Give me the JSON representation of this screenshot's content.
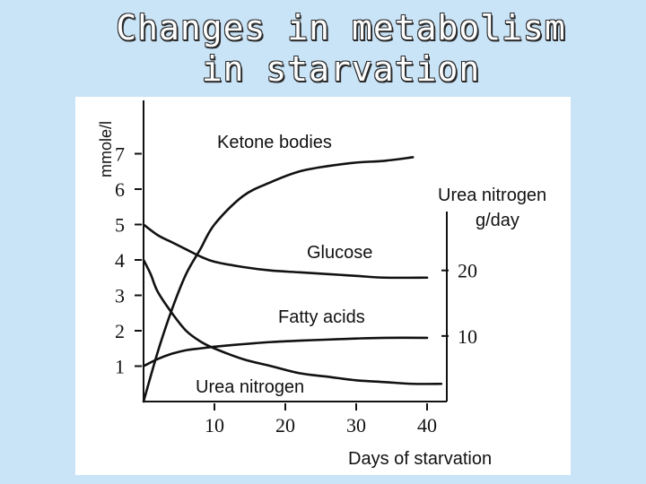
{
  "title": {
    "line1": "Changes in  metabolism",
    "line2": "in starvation"
  },
  "chart_data": {
    "type": "line",
    "ylabel": "mmole/l",
    "xlabel": "Days of starvation",
    "y2label_line1": "Urea nitrogen",
    "y2label_line2": "g/day",
    "xlim": [
      0,
      42
    ],
    "ylim": [
      0,
      8
    ],
    "x_ticks": [
      "10",
      "20",
      "30",
      "40"
    ],
    "y_ticks": [
      "1",
      "2",
      "3",
      "4",
      "5",
      "6",
      "7"
    ],
    "y2_ticks": [
      "10",
      "20"
    ],
    "series": [
      {
        "name": "Ketone bodies",
        "x": [
          0,
          2,
          4,
          6,
          8,
          10,
          14,
          18,
          22,
          26,
          30,
          34,
          38
        ],
        "y": [
          0,
          1.4,
          2.6,
          3.6,
          4.3,
          5.0,
          5.8,
          6.2,
          6.5,
          6.65,
          6.75,
          6.8,
          6.9
        ]
      },
      {
        "name": "Glucose",
        "x": [
          0,
          2,
          4,
          6,
          8,
          10,
          14,
          18,
          22,
          26,
          30,
          34,
          40
        ],
        "y": [
          5.0,
          4.7,
          4.5,
          4.3,
          4.1,
          3.95,
          3.8,
          3.7,
          3.65,
          3.6,
          3.55,
          3.5,
          3.5
        ]
      },
      {
        "name": "Fatty acids",
        "x": [
          0,
          2,
          4,
          6,
          8,
          10,
          14,
          18,
          22,
          26,
          30,
          34,
          40
        ],
        "y": [
          1.0,
          1.2,
          1.35,
          1.45,
          1.5,
          1.55,
          1.62,
          1.68,
          1.72,
          1.75,
          1.78,
          1.8,
          1.8
        ]
      },
      {
        "name": "Urea nitrogen",
        "x": [
          0,
          1,
          2,
          4,
          6,
          8,
          10,
          14,
          18,
          22,
          26,
          30,
          34,
          38,
          42
        ],
        "y": [
          4.0,
          3.6,
          3.1,
          2.5,
          2.0,
          1.7,
          1.5,
          1.2,
          1.0,
          0.8,
          0.7,
          0.6,
          0.55,
          0.5,
          0.5
        ]
      }
    ]
  }
}
